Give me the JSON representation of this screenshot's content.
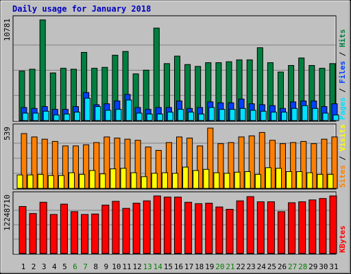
{
  "title": "Daily usage for January 2018",
  "colors": {
    "background": "#c0c0c0",
    "title": "#0000c0",
    "hits": "#008040",
    "files": "#0040ff",
    "pages": "#00e0ff",
    "visits": "#ffff00",
    "sites": "#ff8000",
    "kbytes": "#ff0000",
    "weekend_day": "#008000",
    "weekday": "#000000"
  },
  "chart_data": [
    {
      "type": "bar",
      "name": "hits-files-pages",
      "categories": [
        "1",
        "2",
        "3",
        "4",
        "5",
        "6",
        "7",
        "8",
        "9",
        "10",
        "11",
        "12",
        "13",
        "14",
        "15",
        "16",
        "17",
        "18",
        "19",
        "20",
        "21",
        "22",
        "23",
        "24",
        "25",
        "26",
        "27",
        "28",
        "29",
        "30",
        "31"
      ],
      "weekend_days": [
        "6",
        "7",
        "13",
        "14",
        "20",
        "21",
        "27",
        "28"
      ],
      "ymax_label": "10781",
      "right_labels": [
        "Pages",
        "Files",
        "Hits"
      ],
      "series": [
        {
          "name": "Hits",
          "values": [
            5300,
            5500,
            10781,
            5100,
            5600,
            5500,
            7300,
            5600,
            5700,
            7000,
            7400,
            5000,
            5400,
            9900,
            6100,
            6900,
            6000,
            5800,
            6200,
            6200,
            6300,
            6500,
            6500,
            7800,
            6200,
            5200,
            5900,
            6700,
            5900,
            5600,
            6100
          ]
        },
        {
          "name": "Files",
          "values": [
            1400,
            1300,
            1500,
            1200,
            1200,
            1500,
            3000,
            1700,
            1800,
            2100,
            2800,
            1400,
            1200,
            1400,
            1400,
            2100,
            1300,
            1400,
            2000,
            1900,
            1900,
            2300,
            1800,
            1700,
            1600,
            1300,
            2000,
            2100,
            2100,
            1500,
            1800
          ]
        },
        {
          "name": "Pages",
          "values": [
            800,
            800,
            1000,
            600,
            700,
            900,
            2400,
            1500,
            1100,
            1200,
            2200,
            800,
            700,
            700,
            900,
            1200,
            900,
            700,
            1400,
            1200,
            1200,
            1300,
            1100,
            1000,
            900,
            900,
            1300,
            1600,
            1300,
            800,
            600
          ]
        }
      ]
    },
    {
      "type": "bar",
      "name": "sites-visits",
      "categories": [
        "1",
        "2",
        "3",
        "4",
        "5",
        "6",
        "7",
        "8",
        "9",
        "10",
        "11",
        "12",
        "13",
        "14",
        "15",
        "16",
        "17",
        "18",
        "19",
        "20",
        "21",
        "22",
        "23",
        "24",
        "25",
        "26",
        "27",
        "28",
        "29",
        "30",
        "31"
      ],
      "ymax_label": "539",
      "right_labels": [
        "Sites",
        "/",
        "Visits"
      ],
      "series": [
        {
          "name": "Sites",
          "values": [
            490,
            460,
            440,
            420,
            380,
            380,
            390,
            410,
            460,
            450,
            440,
            430,
            370,
            340,
            410,
            460,
            450,
            380,
            539,
            400,
            410,
            460,
            470,
            500,
            430,
            400,
            410,
            420,
            400,
            440,
            460
          ]
        },
        {
          "name": "Visits",
          "values": [
            120,
            120,
            125,
            115,
            115,
            140,
            125,
            160,
            130,
            175,
            180,
            140,
            105,
            135,
            140,
            135,
            190,
            160,
            170,
            140,
            135,
            145,
            150,
            125,
            185,
            180,
            150,
            150,
            140,
            125,
            125
          ]
        }
      ]
    },
    {
      "type": "bar",
      "name": "kbytes",
      "categories": [
        "1",
        "2",
        "3",
        "4",
        "5",
        "6",
        "7",
        "8",
        "9",
        "10",
        "11",
        "12",
        "13",
        "14",
        "15",
        "16",
        "17",
        "18",
        "19",
        "20",
        "21",
        "22",
        "23",
        "24",
        "25",
        "26",
        "27",
        "28",
        "29",
        "30",
        "31"
      ],
      "ymax_label": "12248710",
      "right_labels": [
        "KBytes"
      ],
      "series": [
        {
          "name": "KBytes",
          "values": [
            10000000,
            8500000,
            10900000,
            8300000,
            10500000,
            8900000,
            8300000,
            8400000,
            10300000,
            11100000,
            9600000,
            10700000,
            11200000,
            12248710,
            12000000,
            12000000,
            10900000,
            10600000,
            10700000,
            9900000,
            9400000,
            11200000,
            12100000,
            11000000,
            11000000,
            8900000,
            10800000,
            11000000,
            11400000,
            11700000,
            12248710
          ]
        }
      ]
    }
  ]
}
